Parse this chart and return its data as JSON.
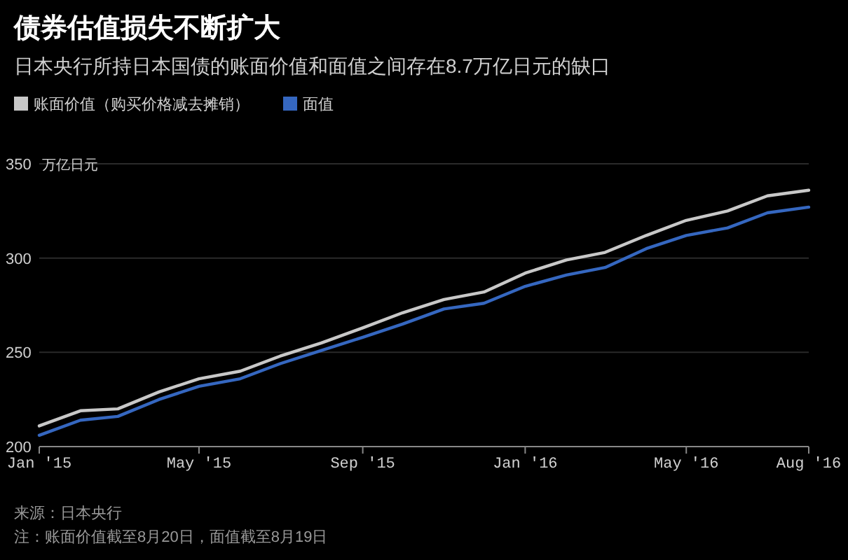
{
  "chart_data": {
    "type": "line",
    "title": "债券估值损失不断扩大",
    "subtitle": "日本央行所持日本国债的账面价值和面值之间存在8.7万亿日元的缺口",
    "ylabel": "万亿日元",
    "x": [
      "2015-01",
      "2015-02",
      "2015-03",
      "2015-04",
      "2015-05",
      "2015-06",
      "2015-07",
      "2015-08",
      "2015-09",
      "2015-10",
      "2015-11",
      "2015-12",
      "2016-01",
      "2016-02",
      "2016-03",
      "2016-04",
      "2016-05",
      "2016-06",
      "2016-07",
      "2016-08"
    ],
    "series": [
      {
        "name": "账面价值（购买价格减去摊销）",
        "color": "#c8c8c8",
        "values": [
          211,
          219,
          220,
          229,
          236,
          240,
          248,
          255,
          263,
          271,
          278,
          282,
          292,
          299,
          303,
          312,
          320,
          325,
          333,
          336
        ]
      },
      {
        "name": "面值",
        "color": "#3567c0",
        "values": [
          206,
          214,
          216,
          225,
          232,
          236,
          244,
          251,
          258,
          265,
          273,
          276,
          285,
          291,
          295,
          305,
          312,
          316,
          324,
          327
        ]
      }
    ],
    "xlim": [
      "2015-01",
      "2016-08"
    ],
    "ylim": [
      200,
      350
    ],
    "xticks": [
      {
        "value": "2015-01",
        "label": "Jan '15"
      },
      {
        "value": "2015-05",
        "label": "May '15"
      },
      {
        "value": "2015-09",
        "label": "Sep '15"
      },
      {
        "value": "2016-01",
        "label": "Jan '16"
      },
      {
        "value": "2016-05",
        "label": "May '16"
      },
      {
        "value": "2016-08",
        "label": "Aug '16"
      }
    ],
    "yticks": [
      200,
      250,
      300,
      350
    ],
    "grid": "y",
    "legend": "top left",
    "line_style": "solid",
    "annotations": [
      "来源：日本央行",
      "注：账面价值截至8月20日，面值截至8月19日"
    ]
  }
}
